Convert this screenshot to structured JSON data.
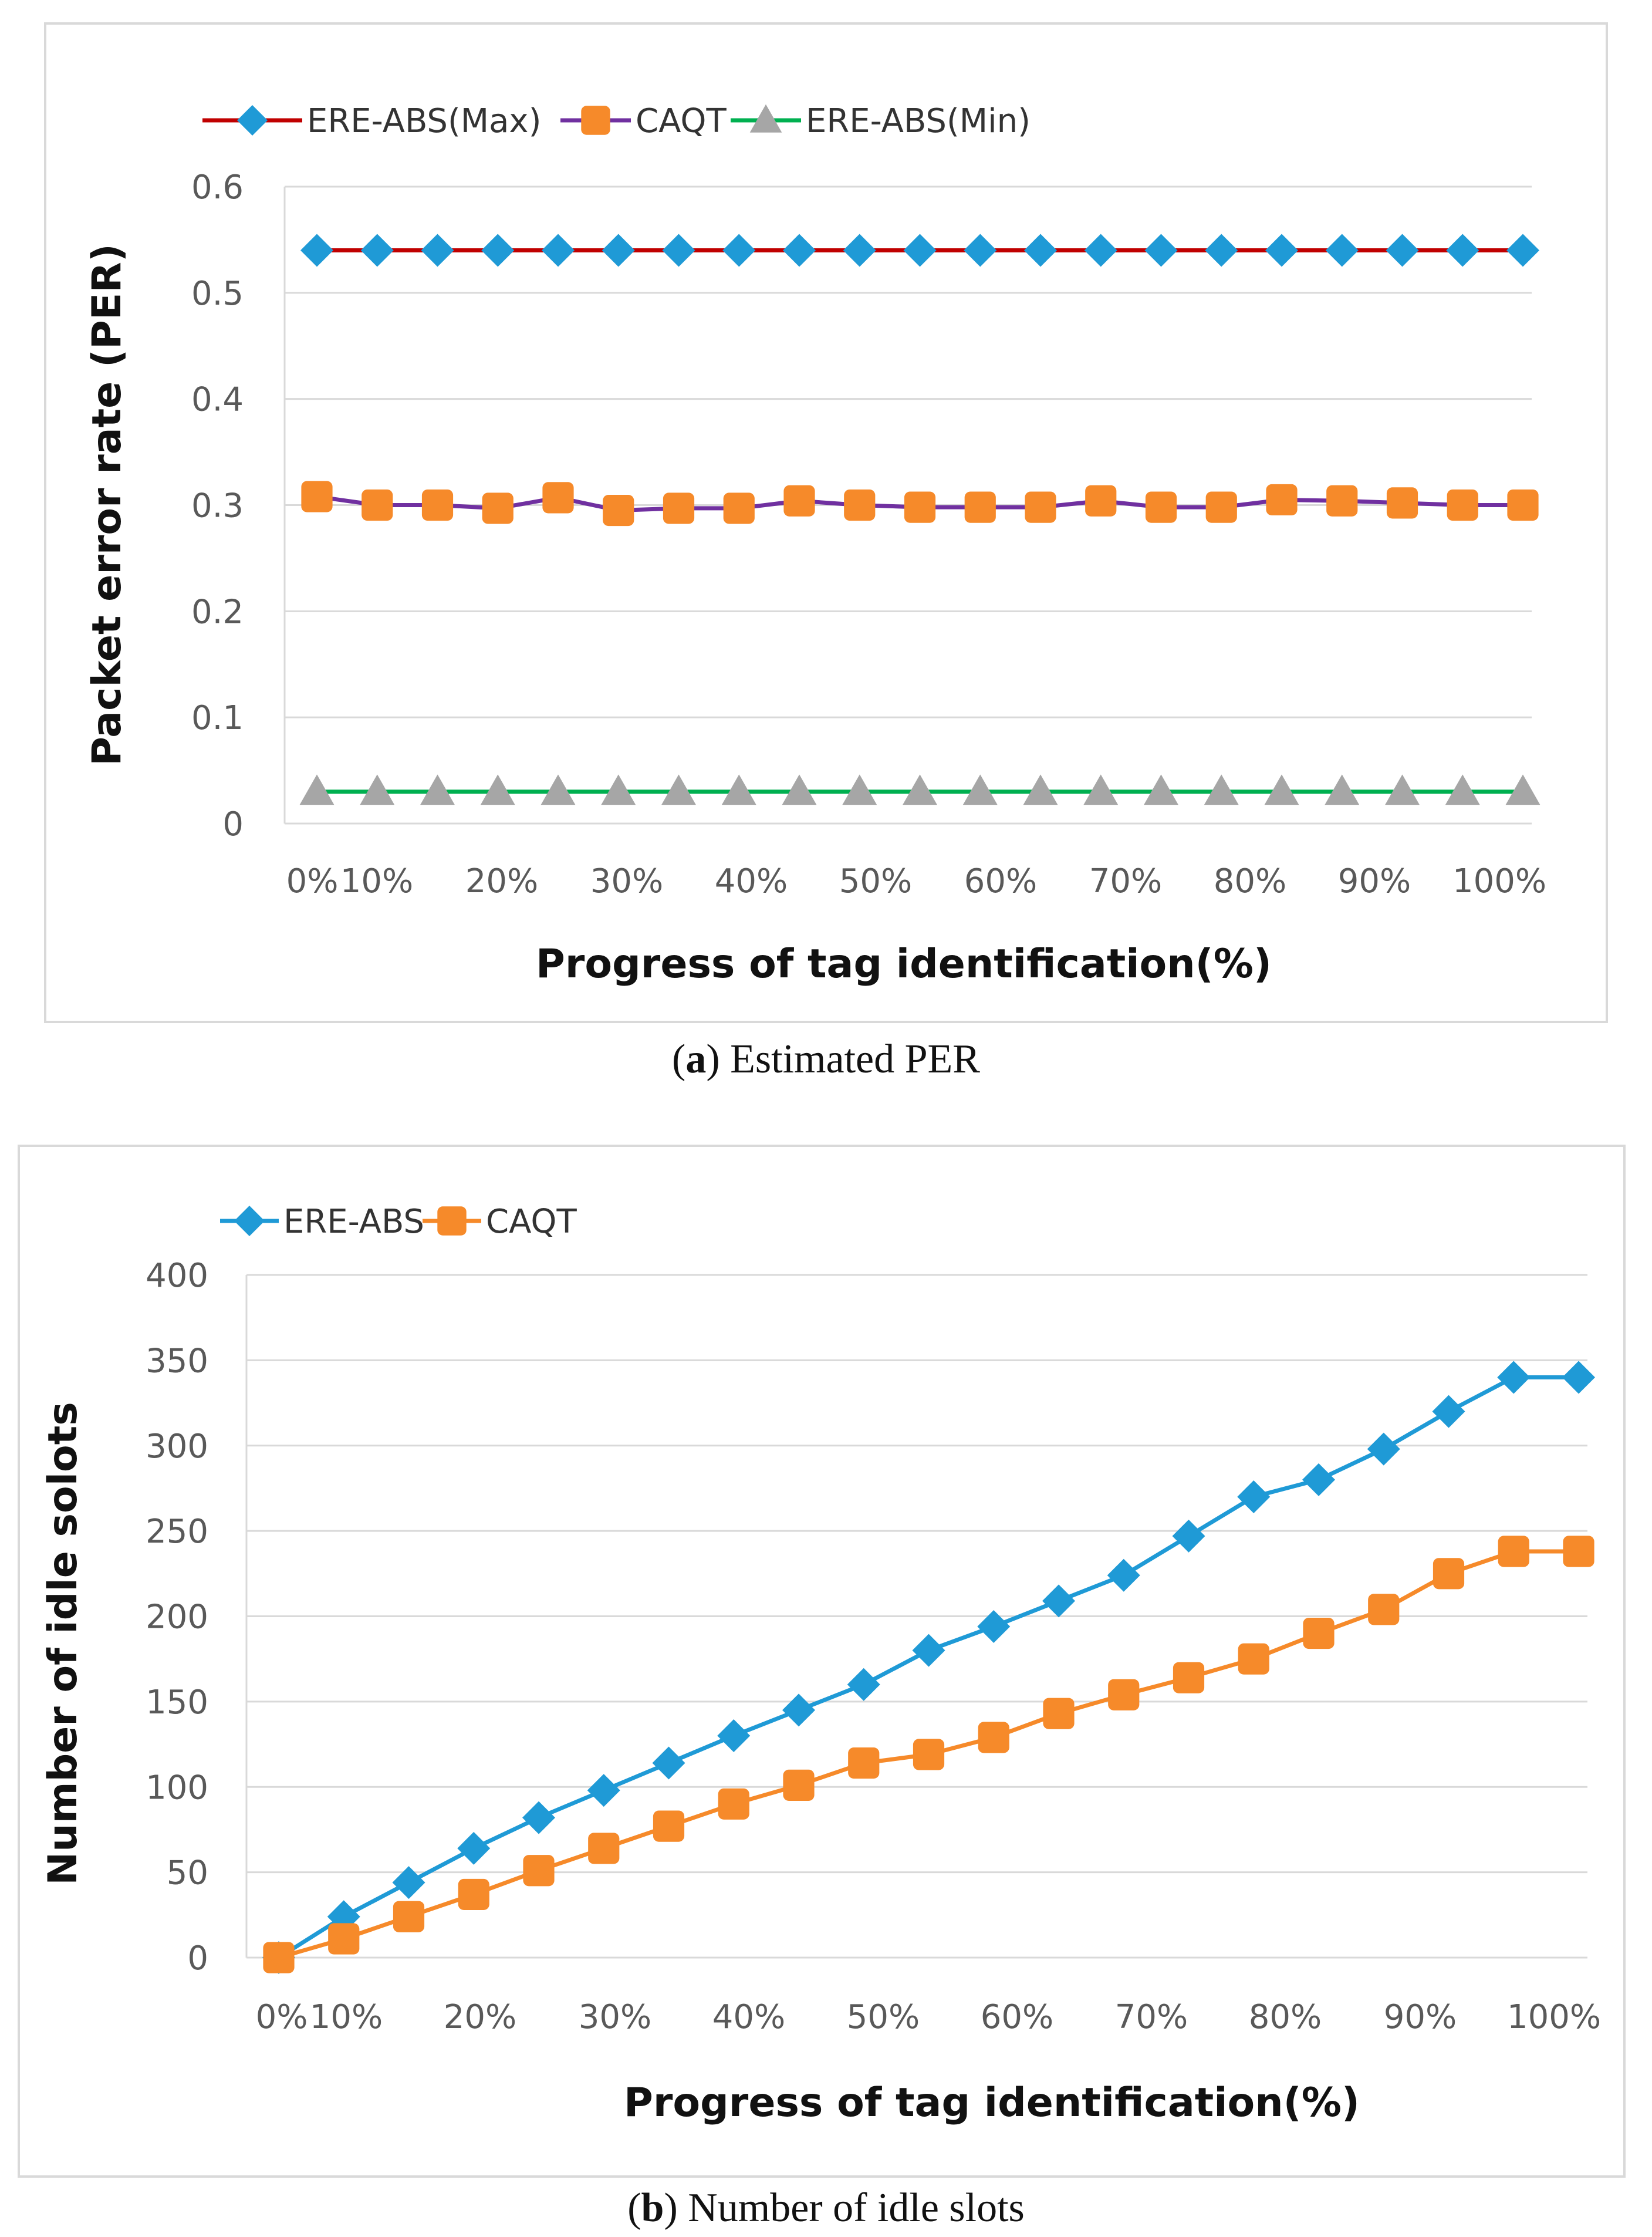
{
  "chart_data": [
    {
      "type": "line",
      "title": "",
      "caption_letter": "a",
      "caption_text": "Estimated PER",
      "xlabel": "Progress of tag identification(%)",
      "ylabel": "Packet error rate (PER)",
      "ylim": [
        0,
        0.6
      ],
      "yticks": [
        "0",
        "0.1",
        "0.2",
        "0.3",
        "0.4",
        "0.5",
        "0.6"
      ],
      "xticks": [
        "0%",
        "10%",
        "20%",
        "30%",
        "40%",
        "50%",
        "60%",
        "70%",
        "80%",
        "90%",
        "100%"
      ],
      "x": [
        0,
        5,
        10,
        15,
        20,
        25,
        30,
        35,
        40,
        45,
        50,
        55,
        60,
        65,
        70,
        75,
        80,
        85,
        90,
        95,
        100
      ],
      "grid": true,
      "legend_position": "top-left",
      "series": [
        {
          "name": "ERE-ABS(Max)",
          "line_color": "#c00000",
          "marker_color": "#1f9ad6",
          "marker": "diamond",
          "values": [
            0.54,
            0.54,
            0.54,
            0.54,
            0.54,
            0.54,
            0.54,
            0.54,
            0.54,
            0.54,
            0.54,
            0.54,
            0.54,
            0.54,
            0.54,
            0.54,
            0.54,
            0.54,
            0.54,
            0.54,
            0.54
          ]
        },
        {
          "name": "CAQT",
          "line_color": "#7030a0",
          "marker_color": "#f68a2a",
          "marker": "square",
          "values": [
            0.308,
            0.3,
            0.3,
            0.297,
            0.307,
            0.295,
            0.297,
            0.297,
            0.304,
            0.3,
            0.298,
            0.298,
            0.298,
            0.304,
            0.298,
            0.298,
            0.305,
            0.304,
            0.302,
            0.3,
            0.3
          ]
        },
        {
          "name": "ERE-ABS(Min)",
          "line_color": "#00b050",
          "marker_color": "#a6a6a6",
          "marker": "triangle",
          "values": [
            0.03,
            0.03,
            0.03,
            0.03,
            0.03,
            0.03,
            0.03,
            0.03,
            0.03,
            0.03,
            0.03,
            0.03,
            0.03,
            0.03,
            0.03,
            0.03,
            0.03,
            0.03,
            0.03,
            0.03,
            0.03
          ]
        }
      ]
    },
    {
      "type": "line",
      "title": "",
      "caption_letter": "b",
      "caption_text": "Number of idle slots",
      "xlabel": "Progress of tag identification(%)",
      "ylabel": "Number of idle solots",
      "ylim": [
        0,
        400
      ],
      "yticks": [
        "0",
        "50",
        "100",
        "150",
        "200",
        "250",
        "300",
        "350",
        "400"
      ],
      "xticks": [
        "0%",
        "10%",
        "20%",
        "30%",
        "40%",
        "50%",
        "60%",
        "70%",
        "80%",
        "90%",
        "100%"
      ],
      "x": [
        0,
        5,
        10,
        15,
        20,
        25,
        30,
        35,
        40,
        45,
        50,
        55,
        60,
        65,
        70,
        75,
        80,
        85,
        90,
        95,
        100
      ],
      "grid": true,
      "legend_position": "top-left",
      "series": [
        {
          "name": "ERE-ABS",
          "line_color": "#1f9ad6",
          "marker_color": "#1f9ad6",
          "marker": "diamond",
          "values": [
            0,
            24,
            44,
            64,
            82,
            98,
            114,
            130,
            145,
            160,
            180,
            194,
            209,
            224,
            247,
            270,
            280,
            298,
            320,
            340,
            340
          ]
        },
        {
          "name": "CAQT",
          "line_color": "#f68a2a",
          "marker_color": "#f68a2a",
          "marker": "square",
          "values": [
            0,
            11,
            24,
            37,
            51,
            64,
            77,
            90,
            101,
            114,
            119,
            129,
            143,
            154,
            164,
            175,
            190,
            204,
            225,
            238,
            238
          ]
        }
      ]
    }
  ]
}
